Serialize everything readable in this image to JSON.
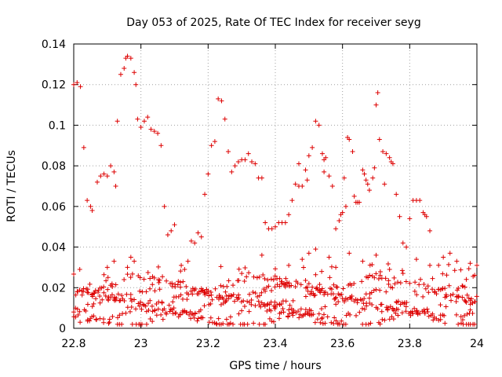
{
  "chart_data": {
    "type": "scatter",
    "title": "Day 053 of 2025, Rate Of TEC Index for receiver seyg",
    "xlabel": "GPS time / hours",
    "ylabel": "ROTI / TECUs",
    "xlim": [
      22.8,
      24.0
    ],
    "ylim": [
      0,
      0.14
    ],
    "xticks": [
      22.8,
      23.0,
      23.2,
      23.4,
      23.6,
      23.8,
      24.0
    ],
    "xtick_labels": [
      "22.8",
      "23",
      "23.2",
      "23.4",
      "23.6",
      "23.8",
      "24"
    ],
    "yticks": [
      0,
      0.02,
      0.04,
      0.06,
      0.08,
      0.1,
      0.12,
      0.14
    ],
    "ytick_labels": [
      "0",
      "0.02",
      "0.04",
      "0.06",
      "0.08",
      "0.1",
      "0.12",
      "0.14"
    ],
    "grid": true,
    "marker": "+",
    "marker_color": "#dd0000",
    "series": [
      {
        "name": "seyg",
        "points": [
          [
            22.8,
            0.12
          ],
          [
            22.81,
            0.121
          ],
          [
            22.82,
            0.119
          ],
          [
            22.83,
            0.089
          ],
          [
            22.84,
            0.063
          ],
          [
            22.85,
            0.06
          ],
          [
            22.855,
            0.058
          ],
          [
            22.87,
            0.072
          ],
          [
            22.88,
            0.075
          ],
          [
            22.89,
            0.076
          ],
          [
            22.9,
            0.075
          ],
          [
            22.91,
            0.08
          ],
          [
            22.92,
            0.077
          ],
          [
            22.925,
            0.07
          ],
          [
            22.93,
            0.102
          ],
          [
            22.94,
            0.125
          ],
          [
            22.95,
            0.128
          ],
          [
            22.955,
            0.133
          ],
          [
            22.96,
            0.134
          ],
          [
            22.97,
            0.133
          ],
          [
            22.98,
            0.126
          ],
          [
            22.985,
            0.12
          ],
          [
            22.99,
            0.103
          ],
          [
            23.0,
            0.099
          ],
          [
            23.01,
            0.102
          ],
          [
            23.02,
            0.104
          ],
          [
            23.03,
            0.098
          ],
          [
            23.04,
            0.097
          ],
          [
            23.05,
            0.096
          ],
          [
            23.06,
            0.09
          ],
          [
            23.07,
            0.06
          ],
          [
            23.08,
            0.046
          ],
          [
            23.09,
            0.048
          ],
          [
            23.1,
            0.051
          ],
          [
            23.15,
            0.043
          ],
          [
            23.16,
            0.042
          ],
          [
            23.17,
            0.047
          ],
          [
            23.18,
            0.045
          ],
          [
            23.19,
            0.066
          ],
          [
            23.2,
            0.076
          ],
          [
            23.21,
            0.09
          ],
          [
            23.22,
            0.092
          ],
          [
            23.23,
            0.113
          ],
          [
            23.24,
            0.112
          ],
          [
            23.25,
            0.103
          ],
          [
            23.26,
            0.087
          ],
          [
            23.27,
            0.077
          ],
          [
            23.28,
            0.08
          ],
          [
            23.29,
            0.082
          ],
          [
            23.3,
            0.083
          ],
          [
            23.31,
            0.083
          ],
          [
            23.32,
            0.086
          ],
          [
            23.33,
            0.082
          ],
          [
            23.34,
            0.081
          ],
          [
            23.35,
            0.074
          ],
          [
            23.36,
            0.074
          ],
          [
            23.37,
            0.052
          ],
          [
            23.38,
            0.049
          ],
          [
            23.39,
            0.049
          ],
          [
            23.4,
            0.05
          ],
          [
            23.41,
            0.052
          ],
          [
            23.42,
            0.052
          ],
          [
            23.43,
            0.052
          ],
          [
            23.44,
            0.056
          ],
          [
            23.45,
            0.063
          ],
          [
            23.46,
            0.071
          ],
          [
            23.47,
            0.07
          ],
          [
            23.48,
            0.07
          ],
          [
            23.49,
            0.078
          ],
          [
            23.5,
            0.085
          ],
          [
            23.51,
            0.089
          ],
          [
            23.52,
            0.102
          ],
          [
            23.53,
            0.1
          ],
          [
            23.54,
            0.086
          ],
          [
            23.545,
            0.083
          ],
          [
            23.55,
            0.084
          ],
          [
            23.56,
            0.075
          ],
          [
            23.57,
            0.07
          ],
          [
            23.58,
            0.049
          ],
          [
            23.59,
            0.053
          ],
          [
            23.6,
            0.057
          ],
          [
            23.61,
            0.06
          ],
          [
            23.615,
            0.094
          ],
          [
            23.62,
            0.093
          ],
          [
            23.63,
            0.087
          ],
          [
            23.635,
            0.065
          ],
          [
            23.64,
            0.062
          ],
          [
            23.65,
            0.062
          ],
          [
            23.66,
            0.078
          ],
          [
            23.665,
            0.076
          ],
          [
            23.67,
            0.073
          ],
          [
            23.675,
            0.071
          ],
          [
            23.68,
            0.068
          ],
          [
            23.69,
            0.074
          ],
          [
            23.695,
            0.079
          ],
          [
            23.7,
            0.11
          ],
          [
            23.705,
            0.116
          ],
          [
            23.71,
            0.093
          ],
          [
            23.72,
            0.087
          ],
          [
            23.73,
            0.086
          ],
          [
            23.74,
            0.084
          ],
          [
            23.745,
            0.082
          ],
          [
            23.75,
            0.081
          ],
          [
            23.76,
            0.066
          ],
          [
            23.77,
            0.055
          ],
          [
            23.78,
            0.042
          ],
          [
            23.79,
            0.04
          ],
          [
            23.8,
            0.054
          ],
          [
            23.81,
            0.063
          ],
          [
            23.82,
            0.063
          ],
          [
            23.83,
            0.063
          ],
          [
            23.84,
            0.057
          ],
          [
            23.845,
            0.056
          ],
          [
            23.85,
            0.055
          ],
          [
            23.86,
            0.048
          ],
          [
            23.595,
            0.056
          ],
          [
            23.645,
            0.062
          ],
          [
            23.545,
            0.077
          ],
          [
            23.605,
            0.074
          ],
          [
            23.725,
            0.071
          ],
          [
            23.495,
            0.073
          ],
          [
            23.47,
            0.081
          ],
          [
            22.97,
            0.035
          ],
          [
            22.96,
            0.03
          ],
          [
            22.98,
            0.033
          ],
          [
            23.12,
            0.031
          ],
          [
            23.13,
            0.029
          ],
          [
            23.14,
            0.033
          ],
          [
            23.3,
            0.027
          ],
          [
            23.36,
            0.036
          ],
          [
            23.44,
            0.031
          ],
          [
            23.48,
            0.034
          ],
          [
            23.5,
            0.037
          ],
          [
            23.52,
            0.039
          ],
          [
            23.56,
            0.035
          ],
          [
            23.58,
            0.03
          ],
          [
            23.62,
            0.037
          ],
          [
            23.66,
            0.033
          ],
          [
            23.7,
            0.036
          ],
          [
            23.74,
            0.029
          ],
          [
            23.78,
            0.027
          ],
          [
            23.82,
            0.034
          ],
          [
            23.86,
            0.031
          ],
          [
            23.9,
            0.035
          ],
          [
            23.92,
            0.037
          ],
          [
            23.94,
            0.033
          ],
          [
            23.98,
            0.032
          ],
          [
            24.0,
            0.031
          ],
          [
            22.92,
            0.033
          ],
          [
            22.9,
            0.03
          ]
        ]
      }
    ]
  }
}
